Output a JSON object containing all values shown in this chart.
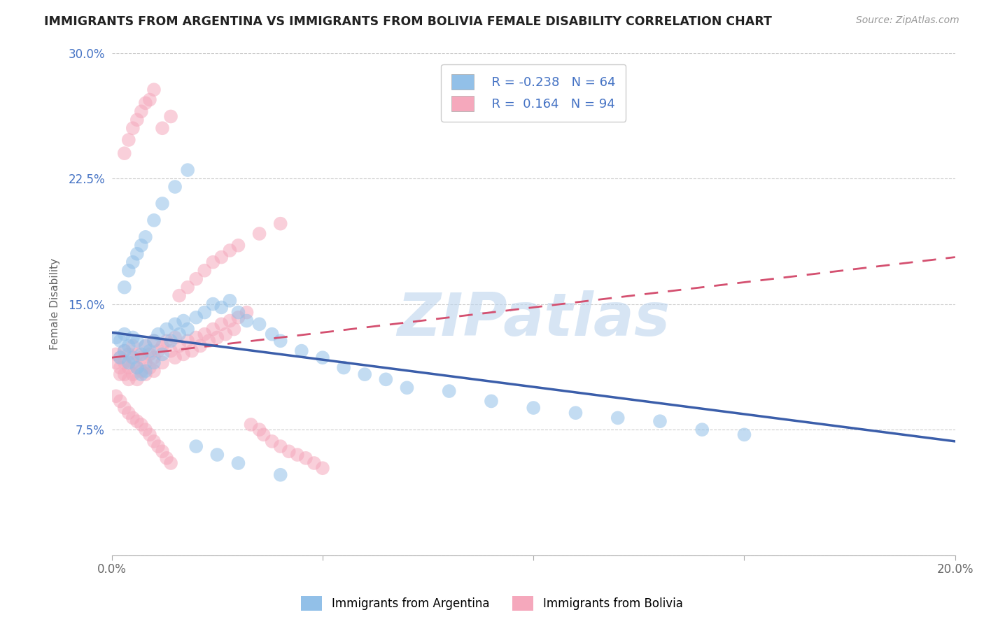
{
  "title": "IMMIGRANTS FROM ARGENTINA VS IMMIGRANTS FROM BOLIVIA FEMALE DISABILITY CORRELATION CHART",
  "source": "Source: ZipAtlas.com",
  "ylabel": "Female Disability",
  "xlim": [
    0.0,
    0.2
  ],
  "ylim": [
    0.0,
    0.3
  ],
  "xticks": [
    0.0,
    0.05,
    0.1,
    0.15,
    0.2
  ],
  "xtick_labels": [
    "0.0%",
    "",
    "",
    "",
    "20.0%"
  ],
  "yticks": [
    0.0,
    0.075,
    0.15,
    0.225,
    0.3
  ],
  "ytick_labels": [
    "",
    "7.5%",
    "15.0%",
    "22.5%",
    "30.0%"
  ],
  "argentina_R": -0.238,
  "argentina_N": 64,
  "bolivia_R": 0.164,
  "bolivia_N": 94,
  "argentina_color": "#92C0E8",
  "bolivia_color": "#F5A8BC",
  "argentina_line_color": "#3B5EAA",
  "bolivia_line_color": "#D45070",
  "watermark": "ZIPatlas",
  "arg_line_x0": 0.0,
  "arg_line_y0": 0.133,
  "arg_line_x1": 0.2,
  "arg_line_y1": 0.068,
  "bol_line_x0": 0.0,
  "bol_line_y0": 0.118,
  "bol_line_x1": 0.2,
  "bol_line_y1": 0.178,
  "argentina_scatter_x": [
    0.001,
    0.002,
    0.002,
    0.003,
    0.003,
    0.004,
    0.004,
    0.005,
    0.005,
    0.006,
    0.006,
    0.007,
    0.007,
    0.008,
    0.008,
    0.009,
    0.01,
    0.01,
    0.011,
    0.012,
    0.013,
    0.014,
    0.015,
    0.016,
    0.017,
    0.018,
    0.02,
    0.022,
    0.024,
    0.026,
    0.028,
    0.03,
    0.032,
    0.035,
    0.038,
    0.04,
    0.045,
    0.05,
    0.055,
    0.06,
    0.065,
    0.07,
    0.08,
    0.09,
    0.1,
    0.11,
    0.12,
    0.13,
    0.14,
    0.15,
    0.003,
    0.004,
    0.005,
    0.006,
    0.007,
    0.008,
    0.01,
    0.012,
    0.015,
    0.018,
    0.02,
    0.025,
    0.03,
    0.04
  ],
  "argentina_scatter_y": [
    0.13,
    0.128,
    0.118,
    0.132,
    0.122,
    0.125,
    0.115,
    0.13,
    0.118,
    0.128,
    0.112,
    0.12,
    0.108,
    0.125,
    0.11,
    0.122,
    0.128,
    0.115,
    0.132,
    0.12,
    0.135,
    0.128,
    0.138,
    0.132,
    0.14,
    0.135,
    0.142,
    0.145,
    0.15,
    0.148,
    0.152,
    0.145,
    0.14,
    0.138,
    0.132,
    0.128,
    0.122,
    0.118,
    0.112,
    0.108,
    0.105,
    0.1,
    0.098,
    0.092,
    0.088,
    0.085,
    0.082,
    0.08,
    0.075,
    0.072,
    0.16,
    0.17,
    0.175,
    0.18,
    0.185,
    0.19,
    0.2,
    0.21,
    0.22,
    0.23,
    0.065,
    0.06,
    0.055,
    0.048
  ],
  "bolivia_scatter_x": [
    0.001,
    0.001,
    0.002,
    0.002,
    0.002,
    0.003,
    0.003,
    0.003,
    0.004,
    0.004,
    0.004,
    0.005,
    0.005,
    0.005,
    0.006,
    0.006,
    0.006,
    0.007,
    0.007,
    0.008,
    0.008,
    0.008,
    0.009,
    0.009,
    0.01,
    0.01,
    0.01,
    0.011,
    0.012,
    0.012,
    0.013,
    0.014,
    0.015,
    0.015,
    0.016,
    0.017,
    0.018,
    0.019,
    0.02,
    0.021,
    0.022,
    0.023,
    0.024,
    0.025,
    0.026,
    0.027,
    0.028,
    0.029,
    0.03,
    0.032,
    0.033,
    0.035,
    0.036,
    0.038,
    0.04,
    0.042,
    0.044,
    0.046,
    0.048,
    0.05,
    0.003,
    0.004,
    0.005,
    0.006,
    0.007,
    0.008,
    0.009,
    0.01,
    0.012,
    0.014,
    0.016,
    0.018,
    0.02,
    0.022,
    0.024,
    0.026,
    0.028,
    0.03,
    0.035,
    0.04,
    0.001,
    0.002,
    0.003,
    0.004,
    0.005,
    0.006,
    0.007,
    0.008,
    0.009,
    0.01,
    0.011,
    0.012,
    0.013,
    0.014
  ],
  "bolivia_scatter_y": [
    0.12,
    0.115,
    0.118,
    0.112,
    0.108,
    0.122,
    0.115,
    0.108,
    0.12,
    0.112,
    0.105,
    0.125,
    0.115,
    0.108,
    0.12,
    0.112,
    0.105,
    0.118,
    0.11,
    0.125,
    0.115,
    0.108,
    0.12,
    0.112,
    0.128,
    0.118,
    0.11,
    0.122,
    0.125,
    0.115,
    0.128,
    0.122,
    0.13,
    0.118,
    0.125,
    0.12,
    0.128,
    0.122,
    0.13,
    0.125,
    0.132,
    0.128,
    0.135,
    0.13,
    0.138,
    0.132,
    0.14,
    0.135,
    0.142,
    0.145,
    0.078,
    0.075,
    0.072,
    0.068,
    0.065,
    0.062,
    0.06,
    0.058,
    0.055,
    0.052,
    0.24,
    0.248,
    0.255,
    0.26,
    0.265,
    0.27,
    0.272,
    0.278,
    0.255,
    0.262,
    0.155,
    0.16,
    0.165,
    0.17,
    0.175,
    0.178,
    0.182,
    0.185,
    0.192,
    0.198,
    0.095,
    0.092,
    0.088,
    0.085,
    0.082,
    0.08,
    0.078,
    0.075,
    0.072,
    0.068,
    0.065,
    0.062,
    0.058,
    0.055
  ]
}
